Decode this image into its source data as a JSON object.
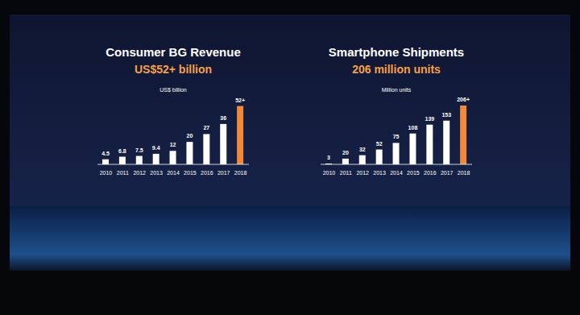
{
  "chart_data": [
    {
      "type": "bar",
      "title": "Consumer BG Revenue",
      "subtitle": "US$52+ billion",
      "y_label": "US$ billion",
      "categories": [
        "2010",
        "2011",
        "2012",
        "2013",
        "2014",
        "2015",
        "2016",
        "2017",
        "2018"
      ],
      "values": [
        4.5,
        6.8,
        7.5,
        9.4,
        12,
        20,
        27,
        36,
        52
      ],
      "value_labels": [
        "4.5",
        "6.8",
        "7.5",
        "9.4",
        "12",
        "20",
        "27",
        "36",
        "52+"
      ],
      "colors": [
        "#ffffff",
        "#ffffff",
        "#ffffff",
        "#ffffff",
        "#ffffff",
        "#ffffff",
        "#ffffff",
        "#ffffff",
        "#f2893a"
      ],
      "ylim": [
        0,
        56
      ],
      "data_labels": true,
      "tick_labels": "x",
      "grid": false
    },
    {
      "type": "bar",
      "title": "Smartphone Shipments",
      "subtitle": "206 million units",
      "y_label": "Million units",
      "categories": [
        "2010",
        "2011",
        "2012",
        "2013",
        "2014",
        "2015",
        "2016",
        "2017",
        "2018"
      ],
      "values": [
        3,
        20,
        32,
        52,
        75,
        108,
        139,
        153,
        206
      ],
      "value_labels": [
        "3",
        "20",
        "32",
        "52",
        "75",
        "108",
        "139",
        "153",
        "206+"
      ],
      "colors": [
        "#ffffff",
        "#ffffff",
        "#ffffff",
        "#ffffff",
        "#ffffff",
        "#ffffff",
        "#ffffff",
        "#ffffff",
        "#f2893a"
      ],
      "ylim": [
        0,
        220
      ],
      "data_labels": true,
      "tick_labels": "x",
      "grid": false
    }
  ]
}
